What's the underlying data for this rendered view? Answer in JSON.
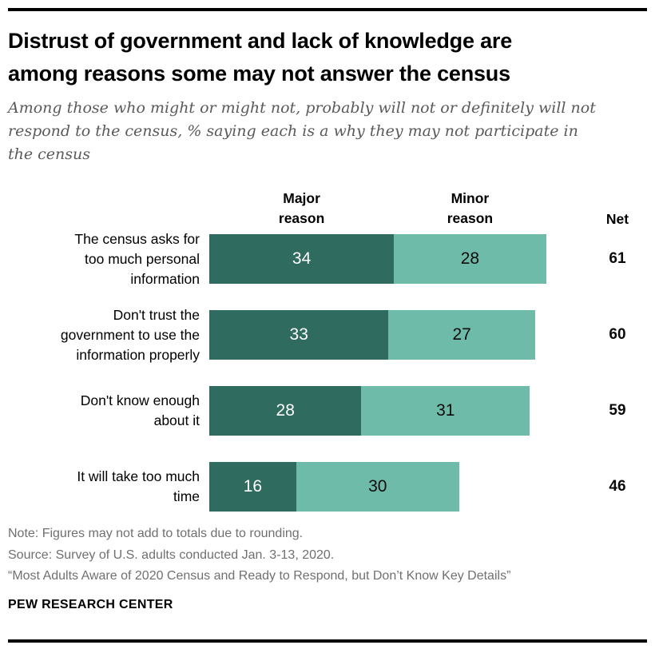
{
  "header": {
    "title": "Distrust of government and lack of knowledge are\namong reasons some may not answer the census",
    "subtitle": "Among those who might or might not, probably will not or definitely will not\nrespond to the census, % saying each is a why they may not participate in\nthe census"
  },
  "chart_data": {
    "type": "bar",
    "stacked": true,
    "orientation": "horizontal",
    "column_headers": {
      "major": "Major\nreason",
      "minor": "Minor\nreason",
      "net": "Net"
    },
    "categories": [
      "The census asks for\ntoo much personal\ninformation",
      "Don't trust the\ngovernment to use the\ninformation properly",
      "Don't know enough\nabout it",
      "It will take too much\ntime"
    ],
    "series": [
      {
        "name": "Major reason",
        "color": "#2f6b5f",
        "values": [
          34,
          33,
          28,
          16
        ]
      },
      {
        "name": "Minor reason",
        "color": "#6ebbaa",
        "values": [
          28,
          27,
          31,
          30
        ]
      }
    ],
    "net_values": [
      61,
      60,
      59,
      46
    ],
    "xlim": [
      0,
      62
    ],
    "value_label_position": "inside-center",
    "legend_position": "column-headers-above-bars",
    "grid": false
  },
  "footer": {
    "note": "Note: Figures may not add to totals due to rounding.",
    "source": "Source: Survey of U.S. adults conducted Jan. 3-13, 2020.",
    "report": "“Most Adults Aware of 2020 Census and Ready to Respond, but Don’t Know Key Details”",
    "brand": "PEW RESEARCH CENTER"
  },
  "colors": {
    "major_bar": "#2f6b5f",
    "minor_bar": "#6ebbaa",
    "major_value_text": "#ffffff",
    "minor_value_text": "#0b0b0b",
    "title_text": "#000000",
    "subtitle_text": "#5a5a5a",
    "footer_text": "#707070",
    "rule": "#000000"
  }
}
